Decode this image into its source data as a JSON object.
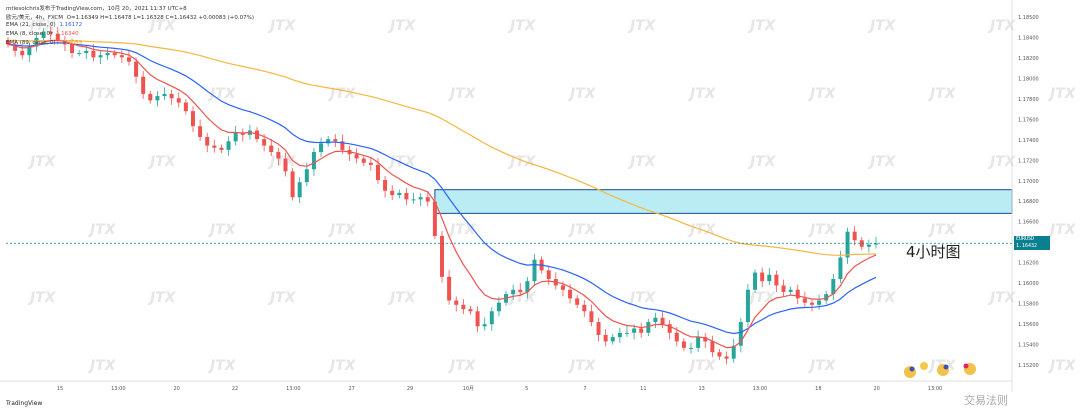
{
  "header": {
    "author_line": "mtlesolchris发布于TradingView.com，10月 20，2021 11:37 UTC+8",
    "symbol_line": "欧元/美元，4h，FXCM",
    "ohlc": "O=1.16349 H=1.16478 L=1.16328 C=1.16432 +0.00083 (+0.07%)",
    "ema1_label": "EMA (21, close, 0)",
    "ema1_value": "1.16172",
    "ema2_label": "EMA (8, close, 0)",
    "ema2_value": "1.16340",
    "ema3_label": "EMA (89, close, 0)",
    "ema3_value": "1.16059"
  },
  "annotation": "4小时图",
  "logo": "TradingView",
  "watermark": "交易法则",
  "price_tag": {
    "symbol": "EURUSD",
    "price": "1.16432",
    "countdown": "01:22:44"
  },
  "colors": {
    "up": "#26a69a",
    "down": "#ef5350",
    "ema_fast": "#ef5350",
    "ema_mid": "#2962ff",
    "ema_slow": "#f5b642",
    "zone_fill": "#b2ebf2",
    "zone_stroke": "#1a4b8c"
  },
  "chart_data": {
    "type": "candlestick",
    "symbol": "EURUSD",
    "timeframe": "4h",
    "y_ticks": [
      "1.18500",
      "1.18400",
      "1.18200",
      "1.18000",
      "1.17800",
      "1.17600",
      "1.17400",
      "1.17200",
      "1.17000",
      "1.16800",
      "1.16600",
      "1.16400",
      "1.16200",
      "1.16000",
      "1.15800",
      "1.15600",
      "1.15400",
      "1.15200"
    ],
    "x_ticks": [
      "15",
      "13:00",
      "20",
      "22",
      "13:00",
      "27",
      "29",
      "10月",
      "5",
      "7",
      "11",
      "13",
      "13:00",
      "18",
      "20",
      "13:00"
    ],
    "resistance_zone": [
      1.1671,
      1.1693
    ],
    "current_price": 1.16432,
    "closes": [
      1.1828,
      1.1822,
      1.1818,
      1.1826,
      1.1834,
      1.184,
      1.1838,
      1.1832,
      1.1828,
      1.182,
      1.182,
      1.1822,
      1.1816,
      1.1818,
      1.182,
      1.1818,
      1.1816,
      1.1812,
      1.1798,
      1.1782,
      1.1776,
      1.178,
      1.1782,
      1.1778,
      1.1774,
      1.1766,
      1.1752,
      1.1742,
      1.1734,
      1.1732,
      1.173,
      1.1738,
      1.1746,
      1.1744,
      1.1748,
      1.174,
      1.1734,
      1.1728,
      1.1722,
      1.171,
      1.1686,
      1.17,
      1.1712,
      1.1728,
      1.1736,
      1.174,
      1.1738,
      1.173,
      1.1726,
      1.1722,
      1.1718,
      1.1716,
      1.1702,
      1.1692,
      1.1688,
      1.169,
      1.1684,
      1.1684,
      1.1686,
      1.1682,
      1.165,
      1.1612,
      1.159,
      1.1586,
      1.1582,
      1.158,
      1.1566,
      1.1568,
      1.158,
      1.1588,
      1.1596,
      1.16,
      1.1598,
      1.1608,
      1.1628,
      1.1618,
      1.161,
      1.1604,
      1.16,
      1.1592,
      1.1586,
      1.158,
      1.157,
      1.1558,
      1.1552,
      1.1556,
      1.156,
      1.156,
      1.1564,
      1.156,
      1.157,
      1.1574,
      1.1568,
      1.156,
      1.1552,
      1.1546,
      1.1546,
      1.1556,
      1.1552,
      1.1542,
      1.1538,
      1.1536,
      1.1548,
      1.157,
      1.16,
      1.1616,
      1.1608,
      1.1614,
      1.1604,
      1.1598,
      1.16,
      1.1592,
      1.1588,
      1.1586,
      1.159,
      1.1596,
      1.161,
      1.163,
      1.1654,
      1.1646,
      1.164,
      1.1642,
      1.1643
    ]
  }
}
